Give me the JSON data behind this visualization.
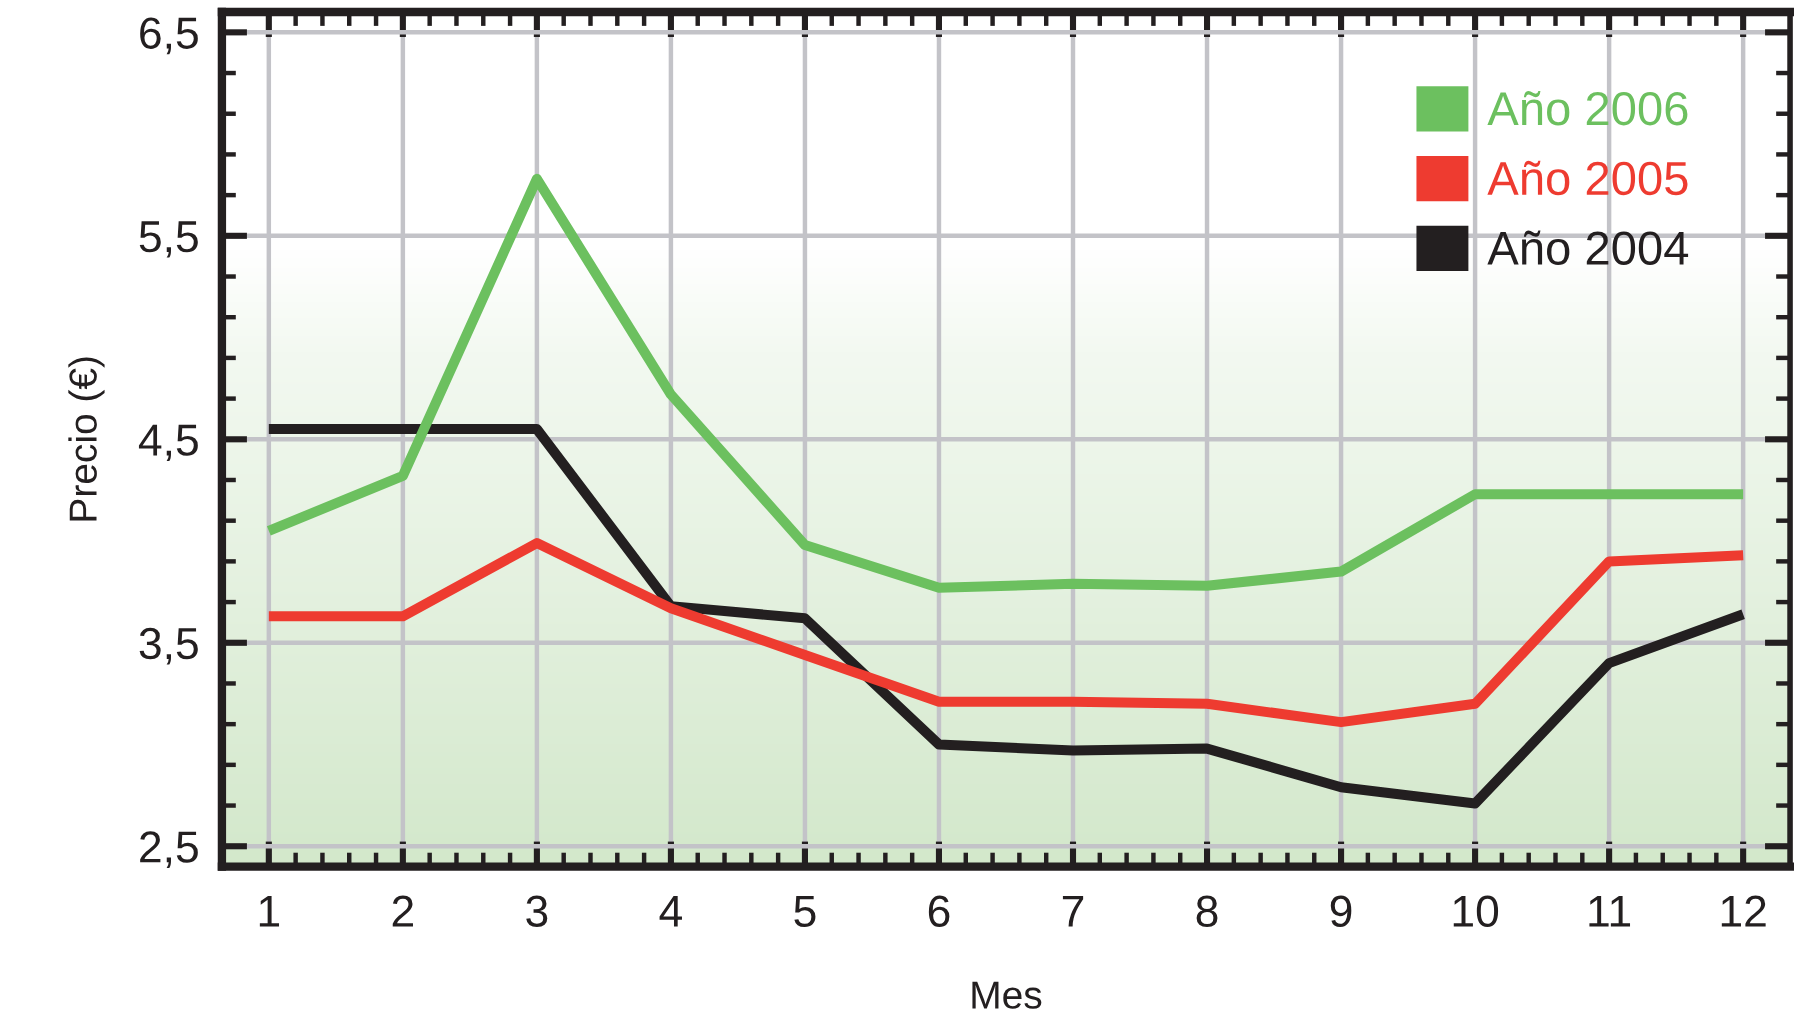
{
  "chart_data": {
    "type": "line",
    "xlabel": "Mes",
    "ylabel": "Precio (€)",
    "x": [
      1,
      2,
      3,
      4,
      5,
      6,
      7,
      8,
      9,
      10,
      11,
      12
    ],
    "xlim": [
      0.65,
      12.35
    ],
    "xticks": [
      1,
      {
        "value": 1.2,
        "label": null
      },
      {
        "value": 1.4,
        "label": null
      },
      {
        "value": 1.6,
        "label": null
      },
      {
        "value": 1.8,
        "label": null
      },
      2,
      {
        "value": 2.2,
        "label": null
      },
      {
        "value": 2.4,
        "label": null
      },
      {
        "value": 2.6,
        "label": null
      },
      {
        "value": 2.8,
        "label": null
      },
      3,
      {
        "value": 3.2,
        "label": null
      },
      {
        "value": 3.4,
        "label": null
      },
      {
        "value": 3.6,
        "label": null
      },
      {
        "value": 3.8,
        "label": null
      },
      4,
      {
        "value": 4.2,
        "label": null
      },
      {
        "value": 4.4,
        "label": null
      },
      {
        "value": 4.6,
        "label": null
      },
      {
        "value": 4.8,
        "label": null
      },
      5,
      {
        "value": 5.2,
        "label": null
      },
      {
        "value": 5.4,
        "label": null
      },
      {
        "value": 5.6,
        "label": null
      },
      {
        "value": 5.8,
        "label": null
      },
      6,
      {
        "value": 6.2,
        "label": null
      },
      {
        "value": 6.4,
        "label": null
      },
      {
        "value": 6.6,
        "label": null
      },
      {
        "value": 6.8,
        "label": null
      },
      7,
      {
        "value": 7.2,
        "label": null
      },
      {
        "value": 7.4,
        "label": null
      },
      {
        "value": 7.6,
        "label": null
      },
      {
        "value": 7.8,
        "label": null
      },
      8,
      {
        "value": 8.2,
        "label": null
      },
      {
        "value": 8.4,
        "label": null
      },
      {
        "value": 8.6,
        "label": null
      },
      {
        "value": 8.8,
        "label": null
      },
      9,
      {
        "value": 9.2,
        "label": null
      },
      {
        "value": 9.4,
        "label": null
      },
      {
        "value": 9.6,
        "label": null
      },
      {
        "value": 9.8,
        "label": null
      },
      10,
      {
        "value": 10.2,
        "label": null
      },
      {
        "value": 10.4,
        "label": null
      },
      {
        "value": 10.6,
        "label": null
      },
      {
        "value": 10.8,
        "label": null
      },
      11,
      {
        "value": 11.2,
        "label": null
      },
      {
        "value": 11.4,
        "label": null
      },
      {
        "value": 11.6,
        "label": null
      },
      {
        "value": 11.8,
        "label": null
      },
      12
    ],
    "ylim": [
      2.4,
      6.6
    ],
    "yticks": [
      {
        "value": 2.5,
        "label": "2,5"
      },
      {
        "value": 2.7,
        "label": null
      },
      {
        "value": 2.9,
        "label": null
      },
      {
        "value": 3.1,
        "label": null
      },
      {
        "value": 3.3,
        "label": null
      },
      {
        "value": 3.5,
        "label": "3,5"
      },
      {
        "value": 3.7,
        "label": null
      },
      {
        "value": 3.9,
        "label": null
      },
      {
        "value": 4.1,
        "label": null
      },
      {
        "value": 4.3,
        "label": null
      },
      {
        "value": 4.5,
        "label": "4,5"
      },
      {
        "value": 4.7,
        "label": null
      },
      {
        "value": 4.9,
        "label": null
      },
      {
        "value": 5.1,
        "label": null
      },
      {
        "value": 5.3,
        "label": null
      },
      {
        "value": 5.5,
        "label": "5,5"
      },
      {
        "value": 5.7,
        "label": null
      },
      {
        "value": 5.9,
        "label": null
      },
      {
        "value": 6.1,
        "label": null
      },
      {
        "value": 6.3,
        "label": null
      },
      {
        "value": 6.5,
        "label": "6,5"
      }
    ],
    "grid": true,
    "legend": "top right",
    "line_style": "solid",
    "series": [
      {
        "name": "Año 2006",
        "color": "#6cc05f",
        "values": [
          4.05,
          4.32,
          5.78,
          4.72,
          3.98,
          3.77,
          3.79,
          3.78,
          3.85,
          4.23,
          4.23,
          4.23
        ]
      },
      {
        "name": "Año 2005",
        "color": "#ee3b30",
        "values": [
          3.63,
          3.63,
          3.99,
          3.67,
          3.44,
          3.21,
          3.21,
          3.2,
          3.11,
          3.2,
          3.9,
          3.93
        ]
      },
      {
        "name": "Año 2004",
        "color": "#231f20",
        "values": [
          4.55,
          4.55,
          4.55,
          3.68,
          3.62,
          3.0,
          2.97,
          2.98,
          2.79,
          2.71,
          3.4,
          3.64
        ]
      }
    ]
  }
}
